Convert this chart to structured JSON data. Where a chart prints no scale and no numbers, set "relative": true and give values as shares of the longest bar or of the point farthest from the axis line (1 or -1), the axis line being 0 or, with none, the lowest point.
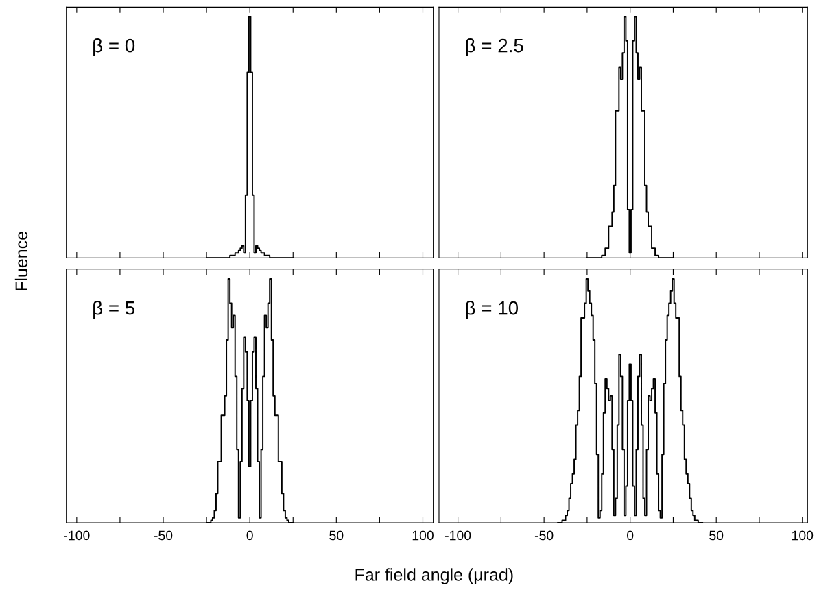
{
  "chart_data": [
    {
      "type": "step",
      "relative": true,
      "ylabel": "Fluence",
      "annotations": [
        "β = 0"
      ],
      "xlim": [
        -106,
        106
      ],
      "xticks": [
        -100,
        {
          "value": -75,
          "label": null
        },
        -50,
        {
          "value": -25,
          "label": null
        },
        0,
        {
          "value": 25,
          "label": null
        },
        50,
        {
          "value": 75,
          "label": null
        },
        100
      ],
      "tick_labels": false,
      "legend": false,
      "grid": false,
      "x": [
        -25,
        -24,
        -23,
        -22,
        -21,
        -20,
        -19,
        -18,
        -17,
        -16,
        -15,
        -14,
        -13,
        -12,
        -11,
        -10,
        -9,
        -8,
        -7,
        -6,
        -5,
        -4,
        -3,
        -2,
        -1,
        0,
        1,
        2,
        3,
        4,
        5,
        6,
        7,
        8,
        9,
        10,
        11,
        12,
        13,
        14,
        15,
        16,
        17,
        18,
        19,
        20,
        21,
        22,
        23,
        24,
        25
      ],
      "series": [
        {
          "color": "#000000",
          "values": [
            0,
            0,
            0,
            0,
            0,
            0,
            0,
            0,
            0,
            0,
            0,
            0,
            0,
            0,
            0.01,
            0.01,
            0.01,
            0.02,
            0.02,
            0.03,
            0.04,
            0.05,
            0.02,
            0.26,
            0.77,
            1.0,
            0.77,
            0.26,
            0.02,
            0.05,
            0.04,
            0.03,
            0.02,
            0.02,
            0.01,
            0.01,
            0.01,
            0,
            0,
            0,
            0,
            0,
            0,
            0,
            0,
            0,
            0,
            0,
            0,
            0,
            0
          ]
        }
      ]
    },
    {
      "type": "step",
      "relative": true,
      "annotations": [
        "β = 2.5"
      ],
      "xlim": [
        -111,
        103
      ],
      "xticks": [
        -100,
        {
          "value": -75,
          "label": null
        },
        -50,
        {
          "value": -25,
          "label": null
        },
        0,
        {
          "value": 25,
          "label": null
        },
        50,
        {
          "value": 75,
          "label": null
        },
        100
      ],
      "tick_labels": false,
      "legend": false,
      "grid": false,
      "x": [
        -25,
        -24,
        -23,
        -22,
        -21,
        -20,
        -19,
        -18,
        -17,
        -16,
        -15,
        -14,
        -13,
        -12,
        -11,
        -10,
        -9,
        -8,
        -7,
        -6,
        -5,
        -4,
        -3,
        -2,
        -1,
        0,
        1,
        2,
        3,
        4,
        5,
        6,
        7,
        8,
        9,
        10,
        11,
        12,
        13,
        14,
        15,
        16,
        17,
        18,
        19,
        20,
        21,
        22,
        23,
        24,
        25
      ],
      "series": [
        {
          "color": "#000000",
          "values": [
            0,
            0,
            0,
            0,
            0,
            0,
            0,
            0,
            0,
            0.01,
            0.01,
            0.04,
            0.04,
            0.13,
            0.13,
            0.19,
            0.3,
            0.61,
            0.61,
            0.79,
            0.74,
            0.85,
            1.0,
            0.9,
            0.2,
            0.02,
            0.2,
            0.9,
            1.0,
            0.85,
            0.74,
            0.79,
            0.61,
            0.61,
            0.3,
            0.19,
            0.13,
            0.13,
            0.04,
            0.04,
            0.01,
            0.01,
            0,
            0,
            0,
            0,
            0,
            0,
            0,
            0,
            0
          ]
        }
      ]
    },
    {
      "type": "step",
      "relative": true,
      "xlabel": "Far field angle (μrad)",
      "annotations": [
        "β = 5"
      ],
      "xlim": [
        -106,
        106
      ],
      "xticks": [
        -100,
        {
          "value": -75,
          "label": null
        },
        -50,
        {
          "value": -25,
          "label": null
        },
        0,
        {
          "value": 25,
          "label": null
        },
        50,
        {
          "value": 75,
          "label": null
        },
        100
      ],
      "tick_labels": "x",
      "legend": false,
      "grid": false,
      "x": [
        -25,
        -24,
        -23,
        -22,
        -21,
        -20,
        -19,
        -18,
        -17,
        -16,
        -15,
        -14,
        -13,
        -12,
        -11,
        -10,
        -9,
        -8,
        -7,
        -6,
        -5,
        -4,
        -3,
        -2,
        -1,
        0,
        1,
        2,
        3,
        4,
        5,
        6,
        7,
        8,
        9,
        10,
        11,
        12,
        13,
        14,
        15,
        16,
        17,
        18,
        19,
        20,
        21,
        22,
        23,
        24,
        25
      ],
      "series": [
        {
          "color": "#000000",
          "values": [
            0,
            0,
            0,
            0.01,
            0.02,
            0.05,
            0.12,
            0.25,
            0.25,
            0.44,
            0.44,
            0.52,
            0.75,
            1.0,
            0.9,
            0.8,
            0.85,
            0.6,
            0.3,
            0.02,
            0.25,
            0.55,
            0.76,
            0.7,
            0.5,
            0.23,
            0.5,
            0.7,
            0.76,
            0.55,
            0.25,
            0.02,
            0.3,
            0.6,
            0.85,
            0.8,
            0.9,
            1.0,
            0.75,
            0.52,
            0.44,
            0.44,
            0.25,
            0.25,
            0.12,
            0.05,
            0.02,
            0.01,
            0,
            0,
            0
          ]
        }
      ]
    },
    {
      "type": "step",
      "relative": true,
      "annotations": [
        "β = 10"
      ],
      "xlim": [
        -111,
        103
      ],
      "xticks": [
        -100,
        {
          "value": -75,
          "label": null
        },
        -50,
        {
          "value": -25,
          "label": null
        },
        0,
        {
          "value": 25,
          "label": null
        },
        50,
        {
          "value": 75,
          "label": null
        },
        100
      ],
      "tick_labels": "x",
      "legend": false,
      "grid": false,
      "x": [
        -42,
        -41,
        -40,
        -39,
        -38,
        -37,
        -36,
        -35,
        -34,
        -33,
        -32,
        -31,
        -30,
        -29,
        -28,
        -27,
        -26,
        -25,
        -24,
        -23,
        -22,
        -21,
        -20,
        -19,
        -18,
        -17,
        -16,
        -15,
        -14,
        -13,
        -12,
        -11,
        -10,
        -9,
        -8,
        -7,
        -6,
        -5,
        -4,
        -3,
        -2,
        -1,
        0,
        1,
        2,
        3,
        4,
        5,
        6,
        7,
        8,
        9,
        10,
        11,
        12,
        13,
        14,
        15,
        16,
        17,
        18,
        19,
        20,
        21,
        22,
        23,
        24,
        25,
        26,
        27,
        28,
        29,
        30,
        31,
        32,
        33,
        34,
        35,
        36,
        37,
        38,
        39,
        40,
        41,
        42
      ],
      "series": [
        {
          "color": "#000000",
          "values": [
            0,
            0,
            0,
            0.01,
            0.01,
            0.03,
            0.05,
            0.1,
            0.16,
            0.2,
            0.26,
            0.4,
            0.46,
            0.6,
            0.84,
            0.84,
            0.9,
            1.0,
            0.95,
            0.9,
            0.85,
            0.75,
            0.57,
            0.28,
            0.02,
            0.05,
            0.2,
            0.45,
            0.59,
            0.55,
            0.5,
            0.52,
            0.3,
            0.03,
            0.1,
            0.4,
            0.69,
            0.6,
            0.3,
            0.03,
            0.15,
            0.5,
            0.65,
            0.5,
            0.15,
            0.03,
            0.3,
            0.6,
            0.69,
            0.4,
            0.1,
            0.03,
            0.3,
            0.52,
            0.5,
            0.55,
            0.59,
            0.45,
            0.2,
            0.05,
            0.02,
            0.28,
            0.57,
            0.75,
            0.85,
            0.9,
            0.95,
            1.0,
            0.9,
            0.84,
            0.84,
            0.6,
            0.46,
            0.4,
            0.26,
            0.2,
            0.16,
            0.1,
            0.05,
            0.03,
            0.01,
            0.01,
            0,
            0,
            0
          ]
        }
      ]
    }
  ]
}
